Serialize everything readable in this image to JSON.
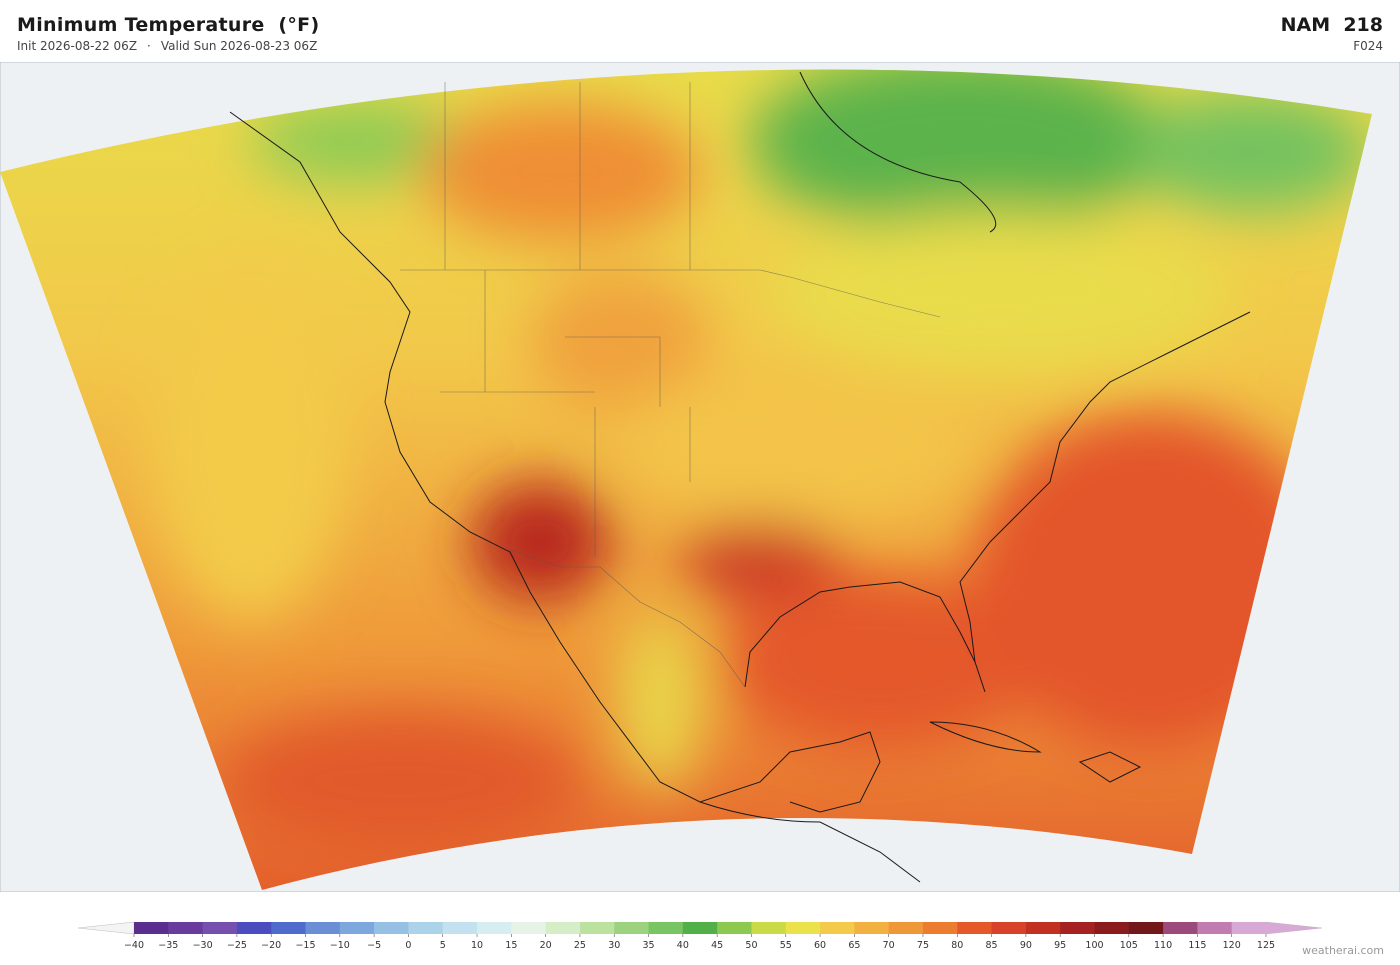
{
  "header": {
    "title": "Minimum Temperature  (°F)",
    "init": "Init 2026-08-22 06Z",
    "separator": "·",
    "valid": "Valid Sun 2026-08-23 06Z",
    "model": "NAM  218",
    "forecast_hour": "F024"
  },
  "colorbar": {
    "ticks": [
      {
        "value": -40,
        "label": "−40"
      },
      {
        "value": -35,
        "label": "−35"
      },
      {
        "value": -30,
        "label": "−30"
      },
      {
        "value": -25,
        "label": "−25"
      },
      {
        "value": -20,
        "label": "−20"
      },
      {
        "value": -15,
        "label": "−15"
      },
      {
        "value": -10,
        "label": "−10"
      },
      {
        "value": -5,
        "label": "−5"
      },
      0,
      5,
      10,
      15,
      20,
      25,
      30,
      35,
      40,
      45,
      50,
      55,
      60,
      65,
      70,
      75,
      80,
      85,
      90,
      95,
      100,
      105,
      110,
      115,
      120,
      125
    ],
    "colors": [
      "#5b2d8e",
      "#6a3b9e",
      "#7650ae",
      "#4b4cbf",
      "#506bcc",
      "#6a8fd6",
      "#7ea8dd",
      "#97c1e4",
      "#acd3ea",
      "#c3e1ee",
      "#d7edf0",
      "#e6f4e8",
      "#d5eec8",
      "#bde29f",
      "#9dd37e",
      "#79c463",
      "#52b04a",
      "#8dc84f",
      "#c9dc48",
      "#ebe14b",
      "#f3ca4a",
      "#f2b141",
      "#ef9838",
      "#ec7c30",
      "#e4592a",
      "#d8422a",
      "#c03124",
      "#a62222",
      "#8b1c1d",
      "#721819",
      "#9c4a7c",
      "#c17db1",
      "#d9a9d5"
    ]
  },
  "credit": "weatherai.com"
}
